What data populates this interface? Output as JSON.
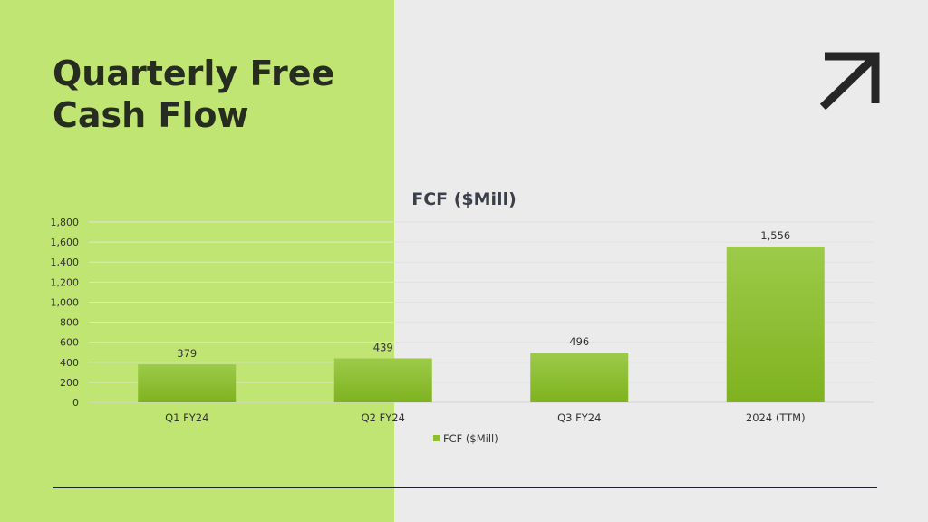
{
  "slide": {
    "title_lines": [
      "Quarterly Free",
      "Cash Flow"
    ]
  },
  "icons": {
    "corner": "arrow-up-right-icon"
  },
  "colors": {
    "left_panel": "#c1e573",
    "background": "#ebebeb",
    "bar_top": "#9ccb4a",
    "bar_bottom": "#7fb21f",
    "title_text": "#262c1f"
  },
  "chart_data": {
    "type": "bar",
    "title": "FCF ($Mill)",
    "categories": [
      "Q1 FY24",
      "Q2 FY24",
      "Q3 FY24",
      "2024 (TTM)"
    ],
    "series": [
      {
        "name": "FCF ($Mill)",
        "values": [
          379,
          439,
          496,
          1556
        ]
      }
    ],
    "data_labels": [
      "379",
      "439",
      "496",
      "1,556"
    ],
    "yticks": [
      "0",
      "200",
      "400",
      "600",
      "800",
      "1,000",
      "1,200",
      "1,400",
      "1,600",
      "1,800"
    ],
    "ylim": [
      0,
      1800
    ],
    "grid": true,
    "legend": "bottom"
  }
}
